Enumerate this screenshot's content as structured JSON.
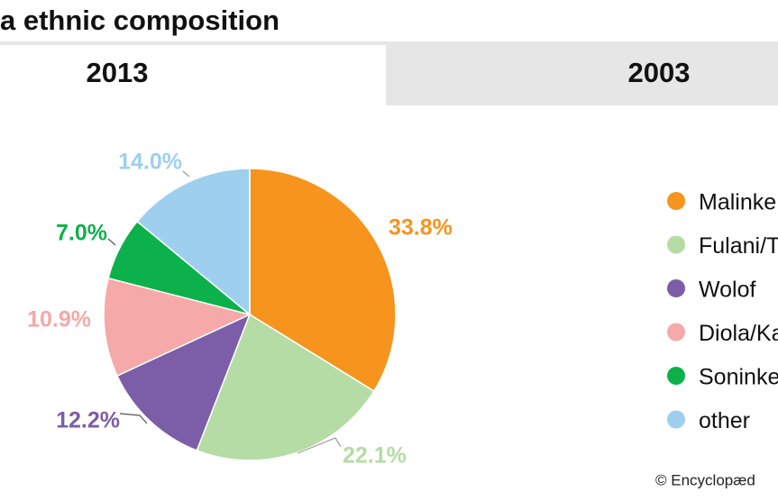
{
  "header": {
    "title": "a ethnic composition"
  },
  "tabs": [
    {
      "label": "2013",
      "active": true
    },
    {
      "label": "2003",
      "active": false
    }
  ],
  "chart_data": {
    "type": "pie",
    "categories": [
      "Malinke",
      "Fulani/T",
      "Wolof",
      "Diola/Ka",
      "Soninke",
      "other"
    ],
    "values": [
      33.8,
      22.1,
      12.2,
      10.9,
      7.0,
      14.0
    ],
    "value_labels": [
      "33.8%",
      "22.1%",
      "12.2%",
      "10.9%",
      "7.0%",
      "14.0%"
    ],
    "colors": [
      "#f7941d",
      "#b5dca5",
      "#7b5ea7",
      "#f5a9a8",
      "#0db14b",
      "#9ecfee"
    ]
  },
  "footer": {
    "credit": "© Encyclopæd"
  }
}
